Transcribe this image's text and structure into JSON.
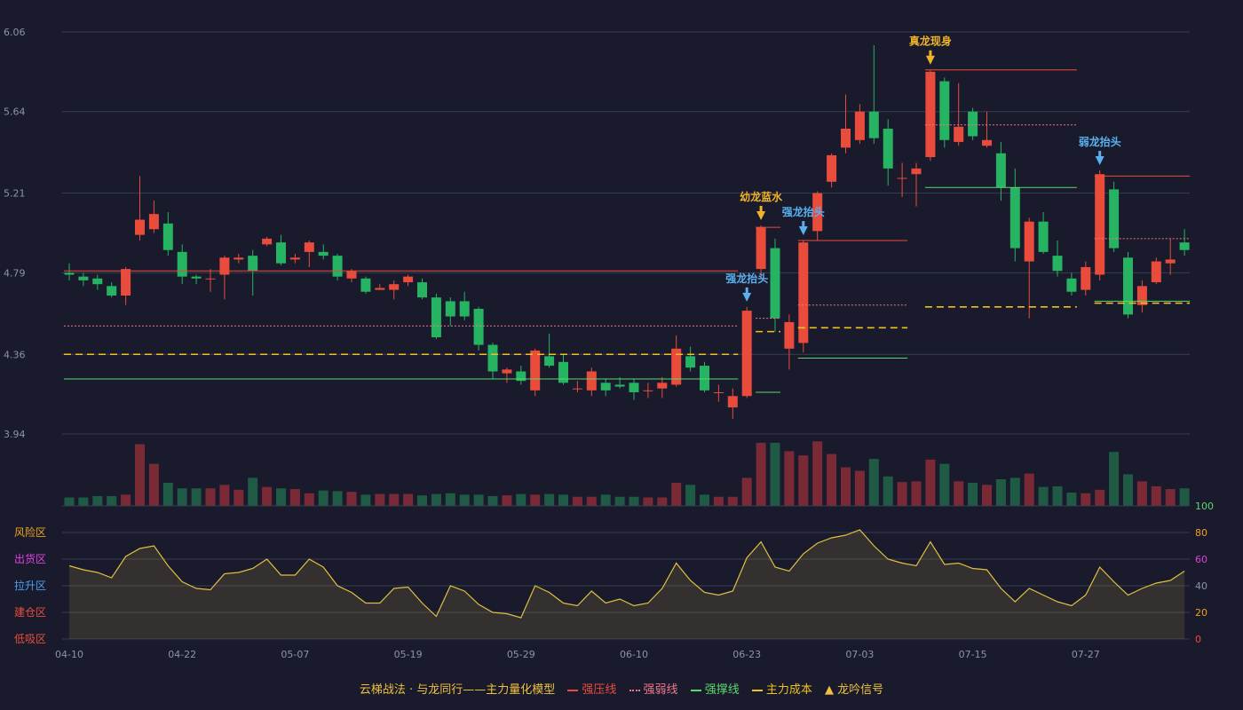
{
  "colors": {
    "background": "#191a2c",
    "grid": "#3a3c52",
    "axis_text": "#8f93a8",
    "up": "#ea4c3c",
    "down": "#26b462",
    "vol_up": "#7a2a35",
    "vol_down": "#1f5a45",
    "pressure": "#ea4c3c",
    "weak": "#f07a8a",
    "support": "#5bd870",
    "cost": "#f0c020",
    "signal_gold": "#f0b429",
    "signal_blue": "#5ab0f0",
    "osc_line": "#e0c040"
  },
  "chart_data": {
    "type": "candlestick",
    "y_ticks": [
      "6.06",
      "5.64",
      "5.21",
      "4.79",
      "4.36",
      "3.94"
    ],
    "ylim": [
      3.94,
      6.06
    ],
    "x_ticks": [
      {
        "i": 0,
        "label": "04-10"
      },
      {
        "i": 8,
        "label": "04-22"
      },
      {
        "i": 16,
        "label": "05-07"
      },
      {
        "i": 24,
        "label": "05-19"
      },
      {
        "i": 32,
        "label": "05-29"
      },
      {
        "i": 40,
        "label": "06-10"
      },
      {
        "i": 48,
        "label": "06-23"
      },
      {
        "i": 56,
        "label": "07-03"
      },
      {
        "i": 64,
        "label": "07-15"
      },
      {
        "i": 72,
        "label": "07-27"
      }
    ],
    "candles": [
      [
        4.79,
        4.78,
        4.84,
        4.75
      ],
      [
        4.77,
        4.75,
        4.79,
        4.72
      ],
      [
        4.76,
        4.73,
        4.78,
        4.7
      ],
      [
        4.72,
        4.67,
        4.74,
        4.66
      ],
      [
        4.67,
        4.81,
        4.82,
        4.62
      ],
      [
        4.99,
        5.07,
        5.3,
        4.96
      ],
      [
        5.02,
        5.1,
        5.17,
        5.0
      ],
      [
        5.05,
        4.91,
        5.11,
        4.88
      ],
      [
        4.9,
        4.77,
        4.94,
        4.73
      ],
      [
        4.77,
        4.76,
        4.78,
        4.73
      ],
      [
        4.76,
        4.76,
        4.81,
        4.69
      ],
      [
        4.78,
        4.87,
        4.88,
        4.65
      ],
      [
        4.86,
        4.87,
        4.89,
        4.84
      ],
      [
        4.88,
        4.8,
        4.91,
        4.67
      ],
      [
        4.94,
        4.97,
        4.98,
        4.93
      ],
      [
        4.95,
        4.84,
        4.99,
        4.83
      ],
      [
        4.86,
        4.87,
        4.89,
        4.84
      ],
      [
        4.9,
        4.95,
        4.96,
        4.82
      ],
      [
        4.9,
        4.88,
        4.94,
        4.86
      ],
      [
        4.88,
        4.77,
        4.89,
        4.75
      ],
      [
        4.76,
        4.8,
        4.81,
        4.74
      ],
      [
        4.76,
        4.69,
        4.77,
        4.68
      ],
      [
        4.7,
        4.71,
        4.73,
        4.7
      ],
      [
        4.7,
        4.73,
        4.75,
        4.65
      ],
      [
        4.74,
        4.77,
        4.78,
        4.72
      ],
      [
        4.74,
        4.66,
        4.76,
        4.65
      ],
      [
        4.66,
        4.45,
        4.68,
        4.44
      ],
      [
        4.64,
        4.56,
        4.66,
        4.51
      ],
      [
        4.64,
        4.56,
        4.69,
        4.54
      ],
      [
        4.6,
        4.41,
        4.61,
        4.38
      ],
      [
        4.41,
        4.27,
        4.42,
        4.23
      ],
      [
        4.26,
        4.28,
        4.29,
        4.21
      ],
      [
        4.27,
        4.22,
        4.3,
        4.2
      ],
      [
        4.17,
        4.38,
        4.39,
        4.14
      ],
      [
        4.35,
        4.3,
        4.47,
        4.29
      ],
      [
        4.32,
        4.21,
        4.36,
        4.2
      ],
      [
        4.18,
        4.18,
        4.22,
        4.16
      ],
      [
        4.17,
        4.27,
        4.29,
        4.14
      ],
      [
        4.21,
        4.17,
        4.23,
        4.14
      ],
      [
        4.2,
        4.19,
        4.24,
        4.18
      ],
      [
        4.21,
        4.16,
        4.23,
        4.12
      ],
      [
        4.17,
        4.17,
        4.21,
        4.13
      ],
      [
        4.18,
        4.21,
        4.24,
        4.13
      ],
      [
        4.2,
        4.39,
        4.46,
        4.19
      ],
      [
        4.35,
        4.29,
        4.4,
        4.27
      ],
      [
        4.3,
        4.17,
        4.32,
        4.16
      ],
      [
        4.16,
        4.16,
        4.2,
        4.11
      ],
      [
        4.08,
        4.14,
        4.18,
        4.02
      ],
      [
        4.14,
        4.59,
        4.61,
        4.13
      ],
      [
        4.81,
        5.03,
        5.04,
        4.76
      ],
      [
        4.92,
        4.55,
        4.97,
        4.48
      ],
      [
        4.39,
        4.53,
        4.57,
        4.28
      ],
      [
        4.42,
        4.95,
        4.96,
        4.37
      ],
      [
        5.01,
        5.21,
        5.22,
        4.96
      ],
      [
        5.27,
        5.41,
        5.42,
        5.24
      ],
      [
        5.45,
        5.55,
        5.73,
        5.42
      ],
      [
        5.49,
        5.64,
        5.68,
        5.47
      ],
      [
        5.64,
        5.5,
        5.99,
        5.47
      ],
      [
        5.55,
        5.34,
        5.6,
        5.25
      ],
      [
        5.29,
        5.29,
        5.37,
        5.19
      ],
      [
        5.31,
        5.34,
        5.37,
        5.14
      ],
      [
        5.4,
        5.85,
        5.86,
        5.38
      ],
      [
        5.8,
        5.49,
        5.82,
        5.45
      ],
      [
        5.48,
        5.56,
        5.79,
        5.46
      ],
      [
        5.64,
        5.51,
        5.66,
        5.49
      ],
      [
        5.46,
        5.49,
        5.64,
        5.45
      ],
      [
        5.42,
        5.24,
        5.48,
        5.17
      ],
      [
        5.24,
        4.92,
        5.34,
        4.85
      ],
      [
        4.85,
        5.06,
        5.08,
        4.55
      ],
      [
        5.06,
        4.9,
        5.11,
        4.89
      ],
      [
        4.88,
        4.8,
        4.96,
        4.77
      ],
      [
        4.76,
        4.69,
        4.79,
        4.67
      ],
      [
        4.7,
        4.82,
        4.85,
        4.67
      ],
      [
        4.78,
        5.31,
        5.33,
        4.75
      ],
      [
        5.23,
        4.92,
        5.27,
        4.9
      ],
      [
        4.87,
        4.57,
        4.9,
        4.55
      ],
      [
        4.62,
        4.72,
        4.75,
        4.58
      ],
      [
        4.74,
        4.85,
        4.87,
        4.73
      ],
      [
        4.84,
        4.86,
        4.97,
        4.78
      ],
      [
        4.95,
        4.91,
        5.02,
        4.88
      ]
    ],
    "volume_units": "relative 0-100",
    "volume": [
      12,
      12,
      14,
      14,
      16,
      88,
      60,
      33,
      25,
      25,
      25,
      30,
      23,
      40,
      27,
      25,
      24,
      18,
      22,
      21,
      20,
      16,
      17,
      17,
      17,
      15,
      17,
      18,
      16,
      16,
      14,
      15,
      17,
      16,
      17,
      16,
      13,
      13,
      16,
      13,
      13,
      12,
      12,
      33,
      30,
      16,
      13,
      13,
      40,
      90,
      90,
      78,
      72,
      92,
      74,
      55,
      50,
      67,
      42,
      34,
      35,
      66,
      60,
      35,
      33,
      30,
      38,
      40,
      46,
      27,
      28,
      19,
      18,
      23,
      77,
      45,
      35,
      28,
      24,
      25
    ],
    "oscillator": [
      55,
      52,
      50,
      46,
      62,
      68,
      70,
      55,
      43,
      38,
      37,
      49,
      50,
      53,
      60,
      48,
      48,
      60,
      54,
      40,
      35,
      27,
      27,
      38,
      39,
      27,
      17,
      40,
      36,
      26,
      20,
      19,
      16,
      40,
      35,
      27,
      25,
      36,
      27,
      30,
      25,
      27,
      38,
      57,
      44,
      35,
      33,
      36,
      61,
      73,
      54,
      51,
      64,
      72,
      76,
      78,
      82,
      70,
      60,
      57,
      55,
      73,
      56,
      57,
      53,
      52,
      38,
      28,
      38,
      33,
      28,
      25,
      33,
      54,
      43,
      33,
      38,
      42,
      44,
      51
    ],
    "osc_zone_labels": [
      "风险区",
      "出货区",
      "拉升区",
      "建仓区",
      "低吸区"
    ],
    "osc_right_ticks": [
      "100",
      "80",
      "60",
      "40",
      "20",
      "0"
    ],
    "lines": [
      {
        "kind": "pressure",
        "from": 0,
        "to": 47,
        "value": 4.8
      },
      {
        "kind": "weak",
        "from": 0,
        "to": 47,
        "value": 4.51
      },
      {
        "kind": "cost",
        "from": 0,
        "to": 47,
        "value": 4.36
      },
      {
        "kind": "support",
        "from": 0,
        "to": 47,
        "value": 4.23
      },
      {
        "kind": "pressure",
        "from": 49,
        "to": 50,
        "value": 5.03
      },
      {
        "kind": "weak",
        "from": 49,
        "to": 50,
        "value": 4.55
      },
      {
        "kind": "cost",
        "from": 49,
        "to": 50,
        "value": 4.48
      },
      {
        "kind": "support",
        "from": 49,
        "to": 50,
        "value": 4.16
      },
      {
        "kind": "pressure",
        "from": 52,
        "to": 59,
        "value": 4.96
      },
      {
        "kind": "weak",
        "from": 52,
        "to": 59,
        "value": 4.62
      },
      {
        "kind": "cost",
        "from": 52,
        "to": 59,
        "value": 4.5
      },
      {
        "kind": "support",
        "from": 52,
        "to": 59,
        "value": 4.34
      },
      {
        "kind": "pressure",
        "from": 61,
        "to": 71,
        "value": 5.86
      },
      {
        "kind": "weak",
        "from": 61,
        "to": 71,
        "value": 5.57
      },
      {
        "kind": "cost",
        "from": 61,
        "to": 71,
        "value": 4.61
      },
      {
        "kind": "support",
        "from": 61,
        "to": 71,
        "value": 5.24
      },
      {
        "kind": "pressure",
        "from": 73,
        "to": 79,
        "value": 5.3
      },
      {
        "kind": "weak",
        "from": 73,
        "to": 79,
        "value": 4.97
      },
      {
        "kind": "cost",
        "from": 73,
        "to": 79,
        "value": 4.63
      },
      {
        "kind": "support",
        "from": 73,
        "to": 79,
        "value": 4.64
      }
    ],
    "signals": [
      {
        "i": 48,
        "label": "强龙抬头",
        "color": "blue"
      },
      {
        "i": 49,
        "label": "幼龙蓝水",
        "color": "gold"
      },
      {
        "i": 52,
        "label": "强龙抬头",
        "color": "blue"
      },
      {
        "i": 61,
        "label": "真龙现身",
        "color": "gold"
      },
      {
        "i": 73,
        "label": "弱龙抬头",
        "color": "blue"
      }
    ]
  },
  "legend": {
    "model": "云梯战法 · 与龙同行——主力量化模型",
    "pressure": "强压线",
    "weak": "强弱线",
    "support": "强撑线",
    "cost": "主力成本",
    "signal": "龙吟信号",
    "signal_icon": "▲"
  }
}
